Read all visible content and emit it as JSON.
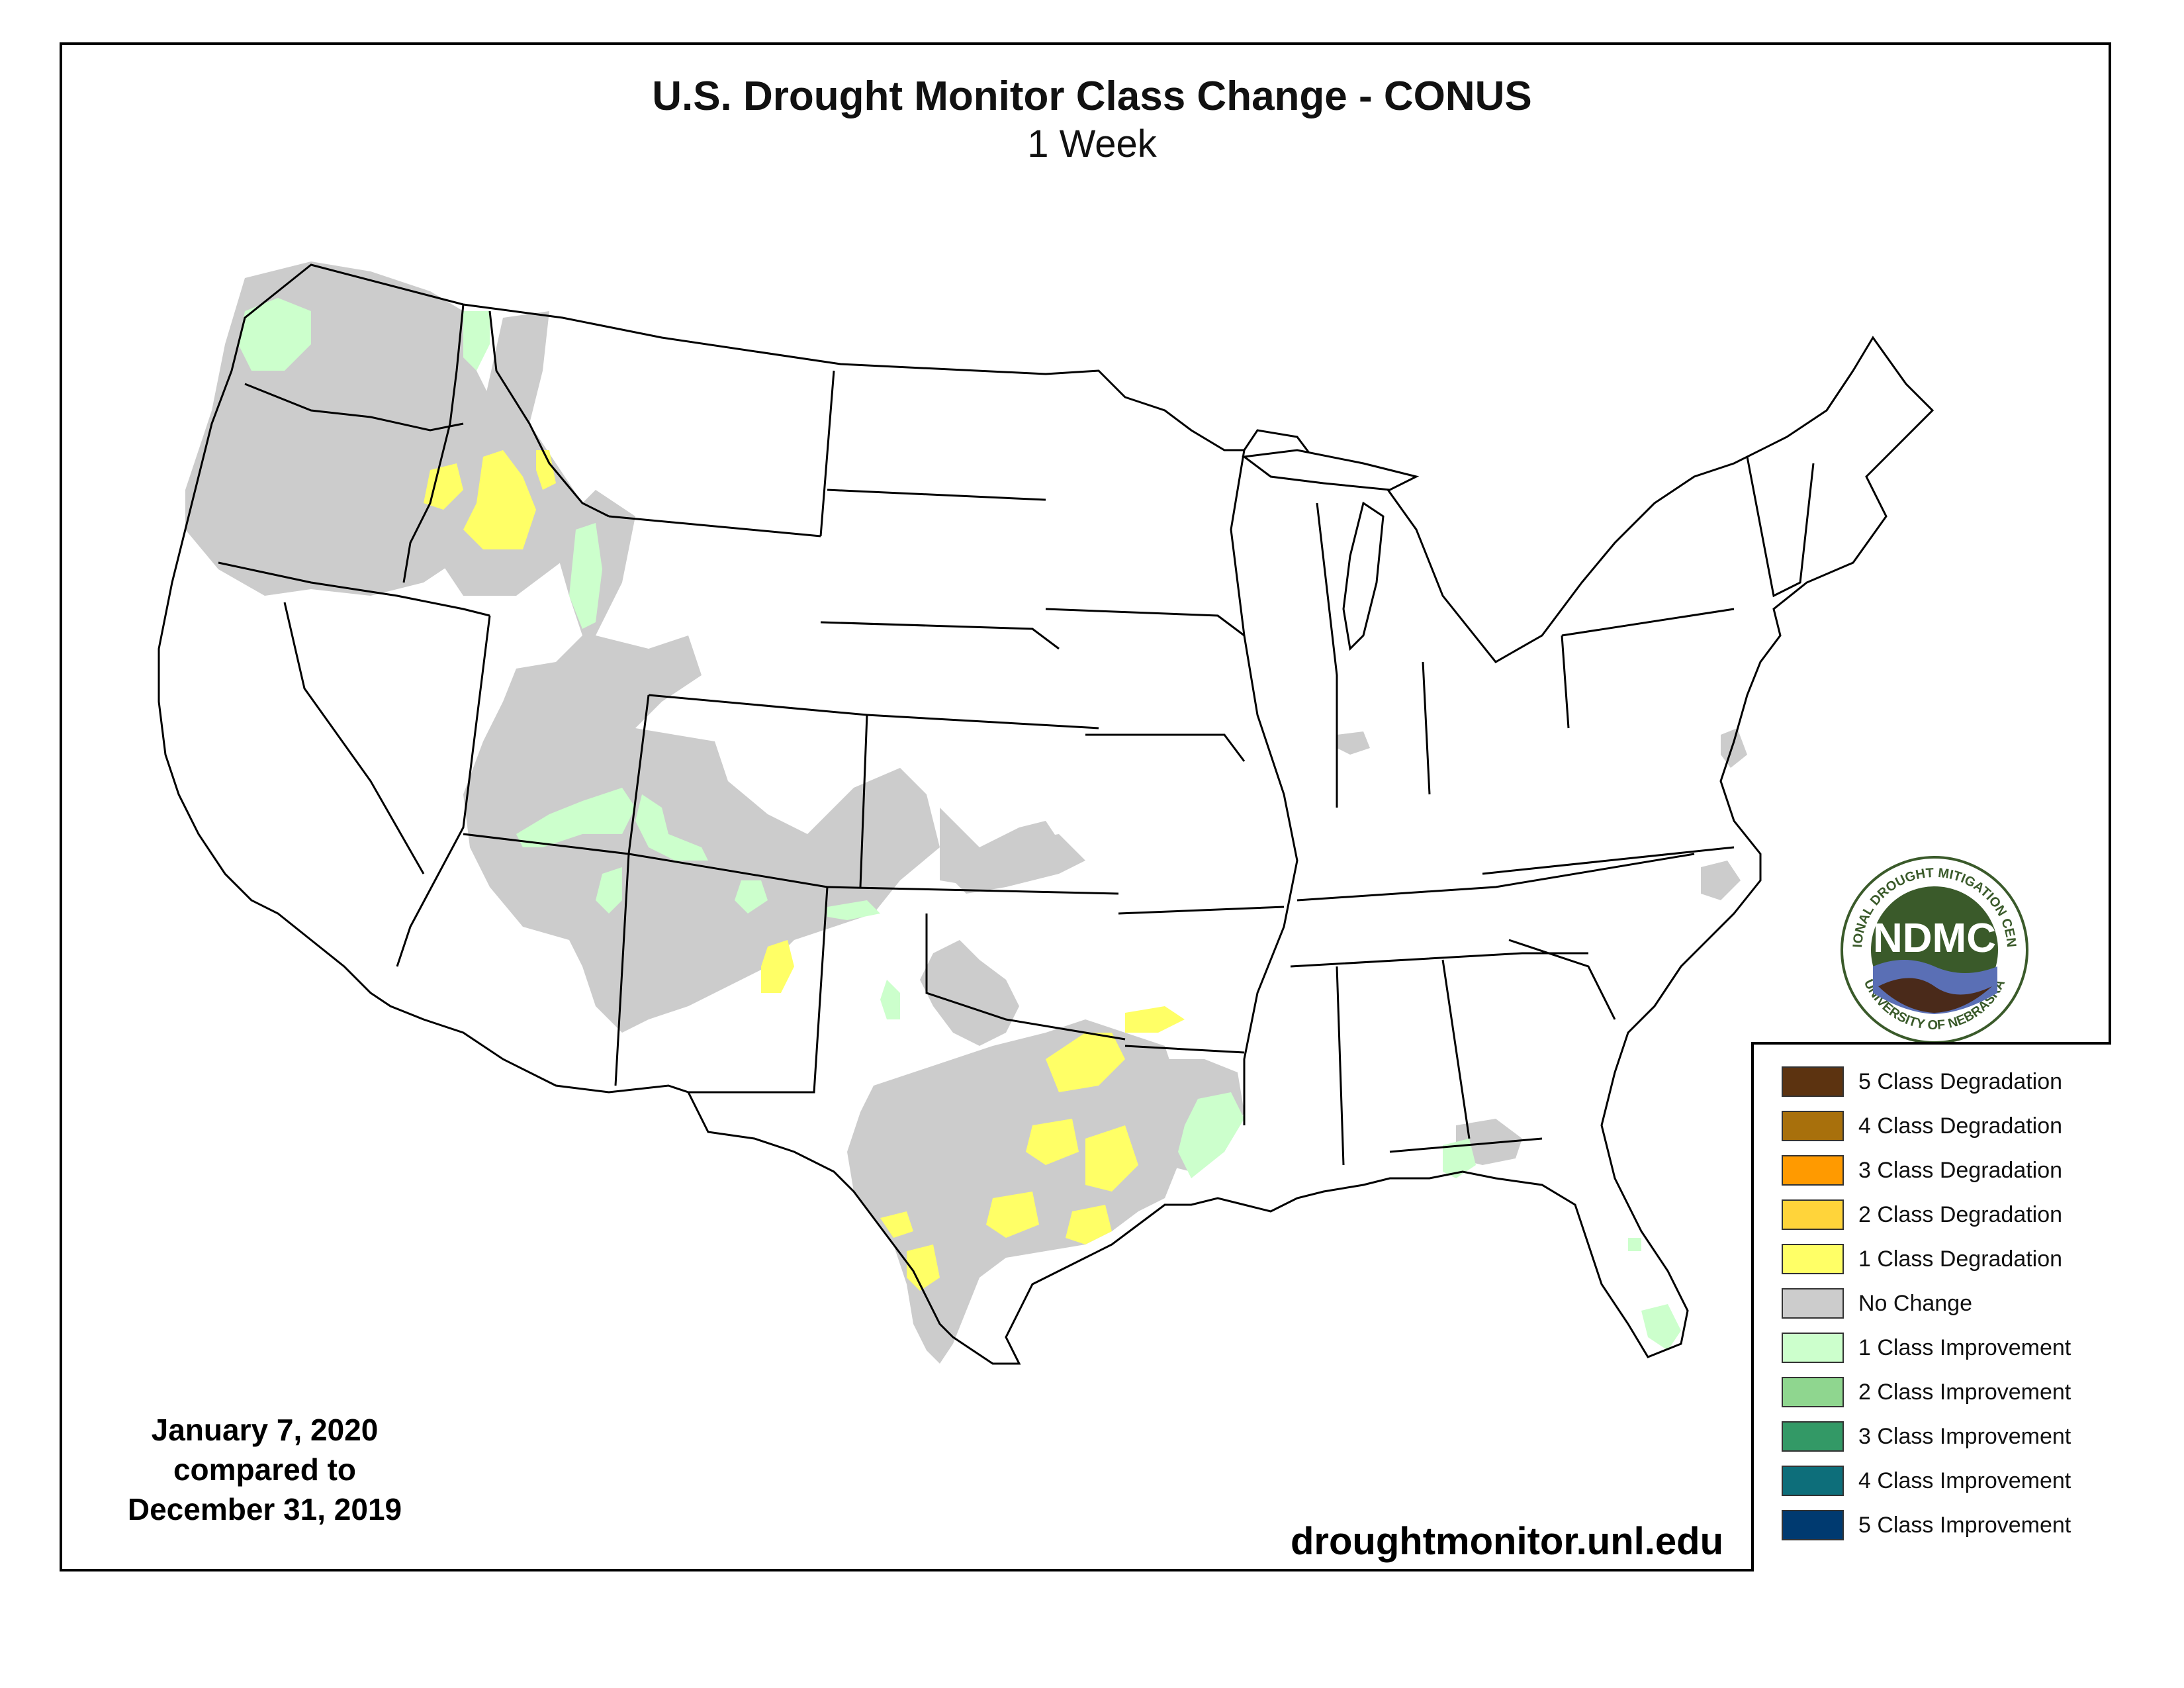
{
  "title": "U.S. Drought Monitor Class Change - CONUS",
  "subtitle": "1 Week",
  "date_lines": [
    "January 7, 2020",
    "compared to",
    "December 31, 2019"
  ],
  "website": "droughtmonitor.unl.edu",
  "logo": {
    "center_text": "NDMC",
    "ring_top": "NATIONAL DROUGHT MITIGATION CENTER",
    "ring_bottom": "UNIVERSITY OF NEBRASKA",
    "colors": {
      "ring": "#ffffff",
      "circle": "#3a5a2a",
      "water": "#5a6fb5",
      "soil": "#4a2a1a"
    }
  },
  "legend": [
    {
      "label": "5 Class Degradation",
      "color": "#5c3310"
    },
    {
      "label": "4 Class Degradation",
      "color": "#a8700c"
    },
    {
      "label": "3 Class Degradation",
      "color": "#ff9a00"
    },
    {
      "label": "2 Class Degradation",
      "color": "#ffd43a"
    },
    {
      "label": "1 Class Degradation",
      "color": "#ffff66"
    },
    {
      "label": "No Change",
      "color": "#cccccc"
    },
    {
      "label": "1 Class Improvement",
      "color": "#ccffcc"
    },
    {
      "label": "2 Class Improvement",
      "color": "#8fd68f"
    },
    {
      "label": "3 Class Improvement",
      "color": "#339966"
    },
    {
      "label": "4 Class Improvement",
      "color": "#0d6e7a"
    },
    {
      "label": "5 Class Improvement",
      "color": "#003a70"
    }
  ]
}
